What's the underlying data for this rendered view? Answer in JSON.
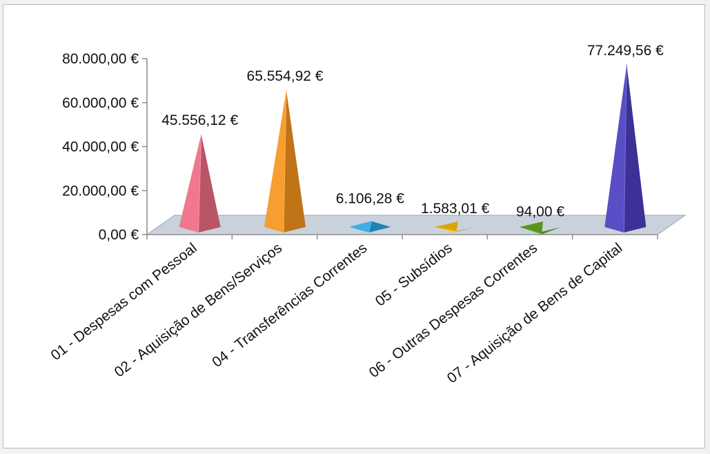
{
  "chart_data": {
    "type": "bar",
    "bar_shape": "pyramid-3d",
    "categories": [
      "01 - Despesas com Pessoal",
      "02 - Aquisição de Bens/Serviços",
      "04 - Transferências Correntes",
      "05 - Subsídios",
      "06 - Outras Despesas Correntes",
      "07 - Aquisição de Bens de Capital"
    ],
    "values": [
      45556.12,
      65554.92,
      6106.28,
      1583.01,
      94.0,
      77249.56
    ],
    "data_labels": [
      "45.556,12 €",
      "65.554,92 €",
      "6.106,28 €",
      "1.583,01 €",
      "94,00 €",
      "77.249,56 €"
    ],
    "colors": [
      "#ef6c84",
      "#f7941d",
      "#29a9e1",
      "#ffc20e",
      "#6ab023",
      "#4b3fc0"
    ],
    "y_ticks": [
      0,
      20000,
      40000,
      60000,
      80000
    ],
    "y_tick_labels": [
      "0,00 €",
      "20.000,00 €",
      "40.000,00 €",
      "60.000,00 €",
      "80.000,00 €"
    ],
    "ylim": [
      0,
      80000
    ],
    "title": "",
    "xlabel": "",
    "ylabel": "",
    "grid": false,
    "legend": "none"
  }
}
